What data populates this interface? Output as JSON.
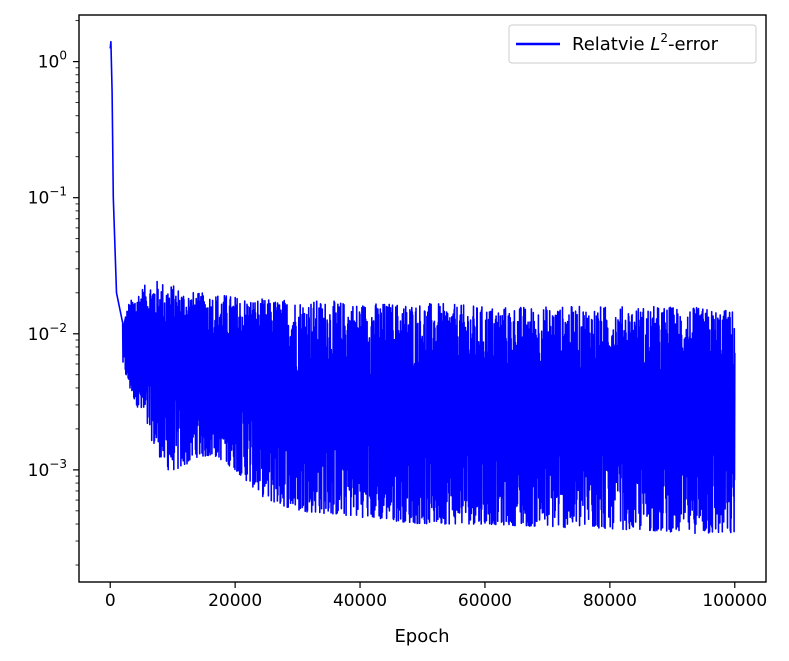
{
  "chart_data": {
    "type": "line",
    "title": "",
    "xlabel": "Epoch",
    "ylabel": "",
    "xlim": [
      -5000,
      105000
    ],
    "ylim": [
      0.00015,
      2.2
    ],
    "yscale": "log",
    "grid": false,
    "legend_position": "top-right",
    "x_ticks": [
      0,
      20000,
      40000,
      60000,
      80000,
      100000
    ],
    "x_tick_labels": [
      "0",
      "20000",
      "40000",
      "60000",
      "80000",
      "100000"
    ],
    "y_ticks": [
      1,
      0.1,
      0.01,
      0.001
    ],
    "y_tick_labels": [
      {
        "base": "10",
        "exp": "0"
      },
      {
        "base": "10",
        "exp": "−1"
      },
      {
        "base": "10",
        "exp": "−2"
      },
      {
        "base": "10",
        "exp": "−3"
      }
    ],
    "series": [
      {
        "name_prefix": "Relatvie ",
        "name_var": "L",
        "name_sup": "2",
        "name_suffix": "-error",
        "color": "#0000ff",
        "peak": {
          "x": 200,
          "y": 1.4
        },
        "initial_decay": [
          [
            0,
            1.25
          ],
          [
            100,
            1.4
          ],
          [
            300,
            0.6
          ],
          [
            500,
            0.1
          ],
          [
            1000,
            0.02
          ],
          [
            2000,
            0.012
          ]
        ],
        "envelope": {
          "x": [
            2000,
            3000,
            5000,
            7000,
            9000,
            11000,
            14000,
            17000,
            20000,
            25000,
            30000,
            40000,
            50000,
            60000,
            70000,
            80000,
            90000,
            100000
          ],
          "upper": [
            0.012,
            0.017,
            0.022,
            0.025,
            0.024,
            0.022,
            0.02,
            0.02,
            0.019,
            0.018,
            0.018,
            0.017,
            0.017,
            0.016,
            0.016,
            0.016,
            0.016,
            0.015
          ],
          "lower": [
            0.006,
            0.004,
            0.0025,
            0.0015,
            0.001,
            0.001,
            0.00125,
            0.00125,
            0.001,
            0.0006,
            0.0005,
            0.00045,
            0.0004,
            0.0004,
            0.00038,
            0.00037,
            0.00035,
            0.00033
          ]
        }
      }
    ]
  }
}
